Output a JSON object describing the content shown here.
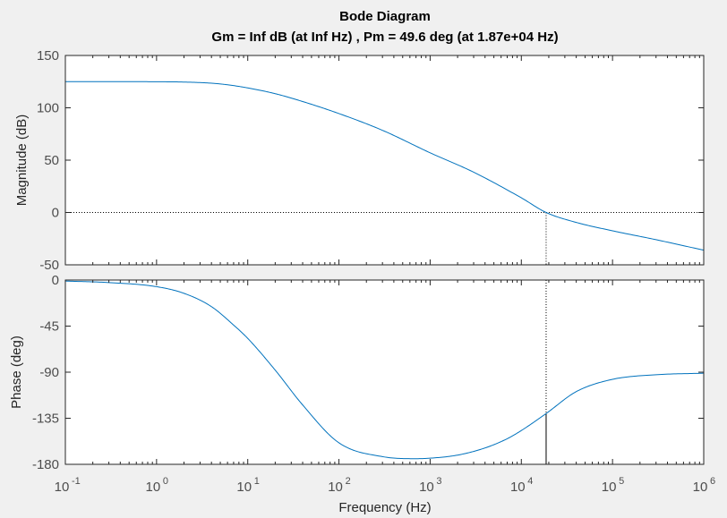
{
  "chart_data": {
    "type": "line",
    "title": "Bode Diagram",
    "subtitle": "Gm = Inf dB (at Inf Hz) ,  Pm = 49.6 deg (at 1.87e+04 Hz)",
    "xlabel": "Frequency  (Hz)",
    "xscale": "log",
    "xlim": [
      0.1,
      1000000
    ],
    "x_ticks": [
      {
        "base": "10",
        "exp": "-1"
      },
      {
        "base": "10",
        "exp": "0"
      },
      {
        "base": "10",
        "exp": "1"
      },
      {
        "base": "10",
        "exp": "2"
      },
      {
        "base": "10",
        "exp": "3"
      },
      {
        "base": "10",
        "exp": "4"
      },
      {
        "base": "10",
        "exp": "5"
      },
      {
        "base": "10",
        "exp": "6"
      }
    ],
    "colors": {
      "series": "#0072bd",
      "axes": "#262626",
      "tick_text": "#4d4d4d",
      "background": "#f0f0f0",
      "plot_bg": "#ffffff"
    },
    "margin_marker": {
      "crossover_frequency": 18700,
      "phase_at_crossover": -130.4
    },
    "magnitude": {
      "ylabel": "Magnitude (dB)",
      "ylim": [
        -50,
        150
      ],
      "y_ticks": [
        "150",
        "100",
        "50",
        "0",
        "-50"
      ],
      "zero_line": true,
      "series": {
        "x": [
          0.1,
          0.3,
          1,
          2,
          4,
          6,
          10,
          20,
          40,
          100,
          300,
          1000,
          3000,
          10000,
          18700,
          40000,
          100000,
          300000,
          1000000
        ],
        "values": [
          125,
          125,
          124.9,
          124.6,
          123.5,
          122,
          119,
          113.5,
          106,
          94.5,
          78.5,
          57,
          38.5,
          14,
          0,
          -9.5,
          -17.5,
          -26,
          -36
        ]
      }
    },
    "phase": {
      "ylabel": "Phase (deg)",
      "ylim": [
        -180,
        0
      ],
      "y_ticks": [
        "0",
        "-45",
        "-90",
        "-135",
        "-180"
      ],
      "series": {
        "x": [
          0.1,
          0.3,
          1,
          2,
          4,
          7,
          10,
          20,
          40,
          100,
          300,
          700,
          1000,
          2000,
          4000,
          7000,
          10000,
          18700,
          40000,
          100000,
          300000,
          1000000
        ],
        "values": [
          -1,
          -2.5,
          -6.5,
          -13,
          -26,
          -44,
          -57,
          -88,
          -122,
          -159,
          -172.5,
          -174.5,
          -174,
          -171,
          -164,
          -155,
          -147,
          -130.4,
          -109,
          -97,
          -92.5,
          -91
        ]
      }
    }
  }
}
